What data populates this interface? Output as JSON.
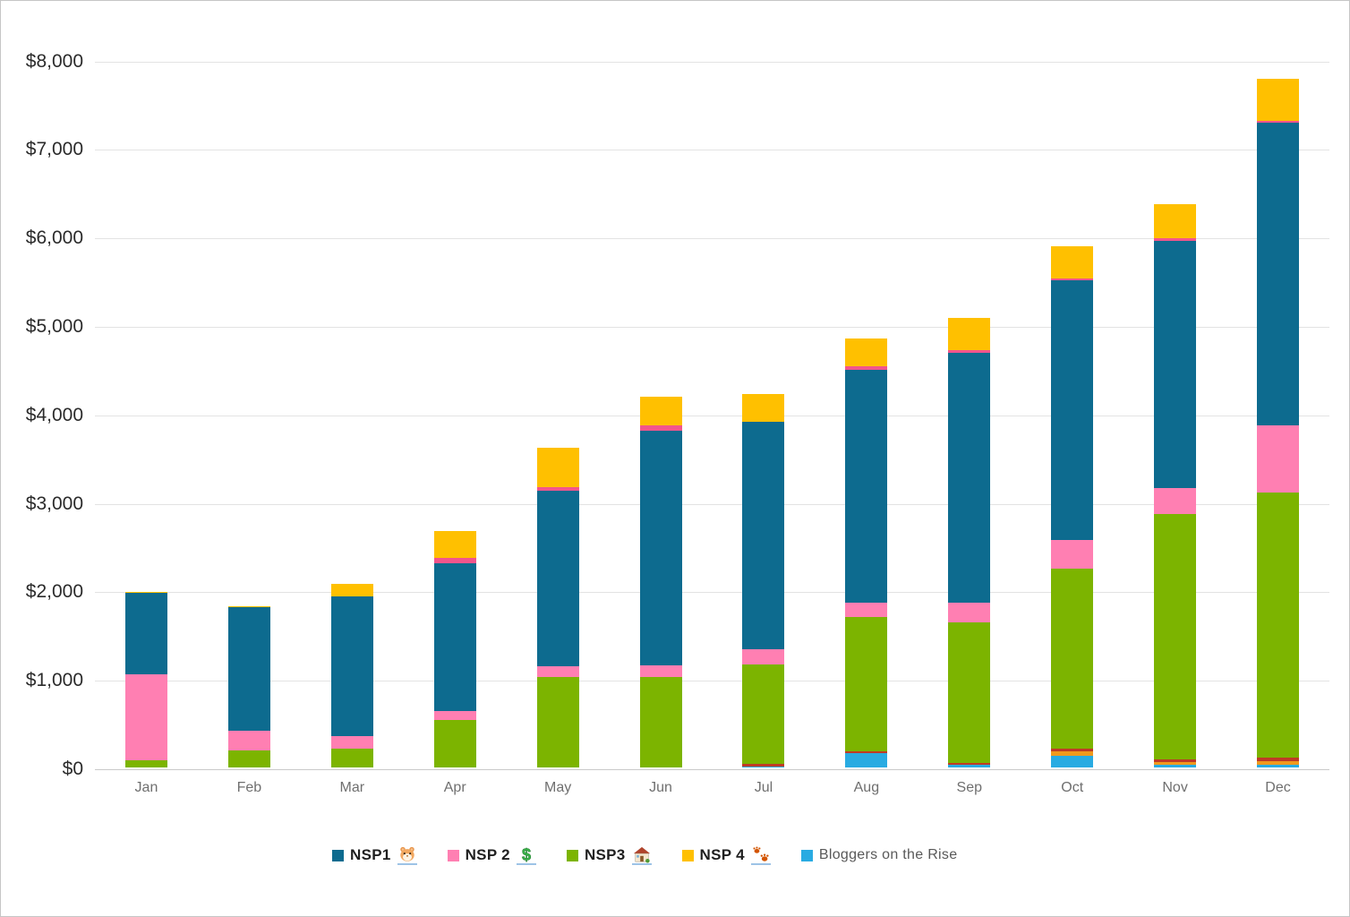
{
  "page": {
    "background": "#FFFFFF",
    "border_color": "#C6C6C6"
  },
  "chart_data": {
    "type": "bar",
    "stacked": true,
    "title": "",
    "xlabel": "",
    "ylabel": "",
    "grid": true,
    "legend_position": "bottom",
    "categories": [
      "Jan",
      "Feb",
      "Mar",
      "Apr",
      "May",
      "Jun",
      "Jul",
      "Aug",
      "Sep",
      "Oct",
      "Nov",
      "Dec"
    ],
    "y_axis": {
      "min": 0,
      "max": 8000,
      "step": 1000,
      "tick_labels": [
        "$0",
        "$1,000",
        "$2,000",
        "$3,000",
        "$4,000",
        "$5,000",
        "$6,000",
        "$7,000",
        "$8,000"
      ],
      "tick_values": [
        0,
        1000,
        2000,
        3000,
        4000,
        5000,
        6000,
        7000,
        8000
      ]
    },
    "series": [
      {
        "name": "Bloggers on the Rise",
        "color": "#29ABE2",
        "in_legend": true,
        "values": [
          0,
          0,
          0,
          0,
          0,
          0,
          5,
          160,
          30,
          135,
          30,
          30
        ]
      },
      {
        "name": "unlabeled-orange-stripe",
        "color": "#F09A1E",
        "in_legend": false,
        "values": [
          0,
          0,
          0,
          0,
          0,
          0,
          0,
          0,
          0,
          50,
          30,
          40
        ]
      },
      {
        "name": "unlabeled-red-stripe",
        "color": "#BF3B26",
        "in_legend": false,
        "values": [
          0,
          0,
          0,
          0,
          0,
          0,
          25,
          25,
          25,
          30,
          30,
          40
        ]
      },
      {
        "name": "NSP3",
        "color": "#7CB400",
        "in_legend": true,
        "values": [
          80,
          190,
          210,
          535,
          1020,
          1020,
          1125,
          1515,
          1585,
          2035,
          2775,
          3000
        ]
      },
      {
        "name": "NSP2",
        "color": "#FF7FB2",
        "in_legend": true,
        "values": [
          970,
          225,
          145,
          100,
          120,
          130,
          170,
          160,
          225,
          325,
          295,
          755
        ]
      },
      {
        "name": "NSP1",
        "color": "#0D6B8F",
        "in_legend": true,
        "values": [
          920,
          1395,
          1580,
          1670,
          1985,
          2660,
          2570,
          2635,
          2820,
          2935,
          2790,
          3425
        ]
      },
      {
        "name": "unlabeled-magenta-stripe",
        "color": "#F2558C",
        "in_legend": false,
        "values": [
          0,
          0,
          0,
          60,
          40,
          60,
          0,
          40,
          35,
          15,
          35,
          10
        ]
      },
      {
        "name": "NSP4",
        "color": "#FFC000",
        "in_legend": true,
        "values": [
          10,
          15,
          140,
          310,
          445,
          325,
          315,
          315,
          360,
          370,
          380,
          480
        ]
      }
    ],
    "totals_approx": [
      1980,
      1825,
      2075,
      2675,
      3610,
      4195,
      4210,
      4850,
      5080,
      5895,
      6365,
      7780
    ],
    "legend": [
      {
        "label": "NSP1",
        "icon": "hamster-icon",
        "color": "#0D6B8F",
        "bold": true
      },
      {
        "label": "NSP 2",
        "icon": "dollar-icon",
        "color": "#FF7FB2",
        "bold": true
      },
      {
        "label": "NSP3",
        "icon": "house-icon",
        "color": "#7CB400",
        "bold": true
      },
      {
        "label": "NSP 4",
        "icon": "paw-prints-icon",
        "color": "#FFC000",
        "bold": true
      },
      {
        "label": "Bloggers on the Rise",
        "icon": null,
        "color": "#29ABE2",
        "bold": false
      }
    ]
  }
}
